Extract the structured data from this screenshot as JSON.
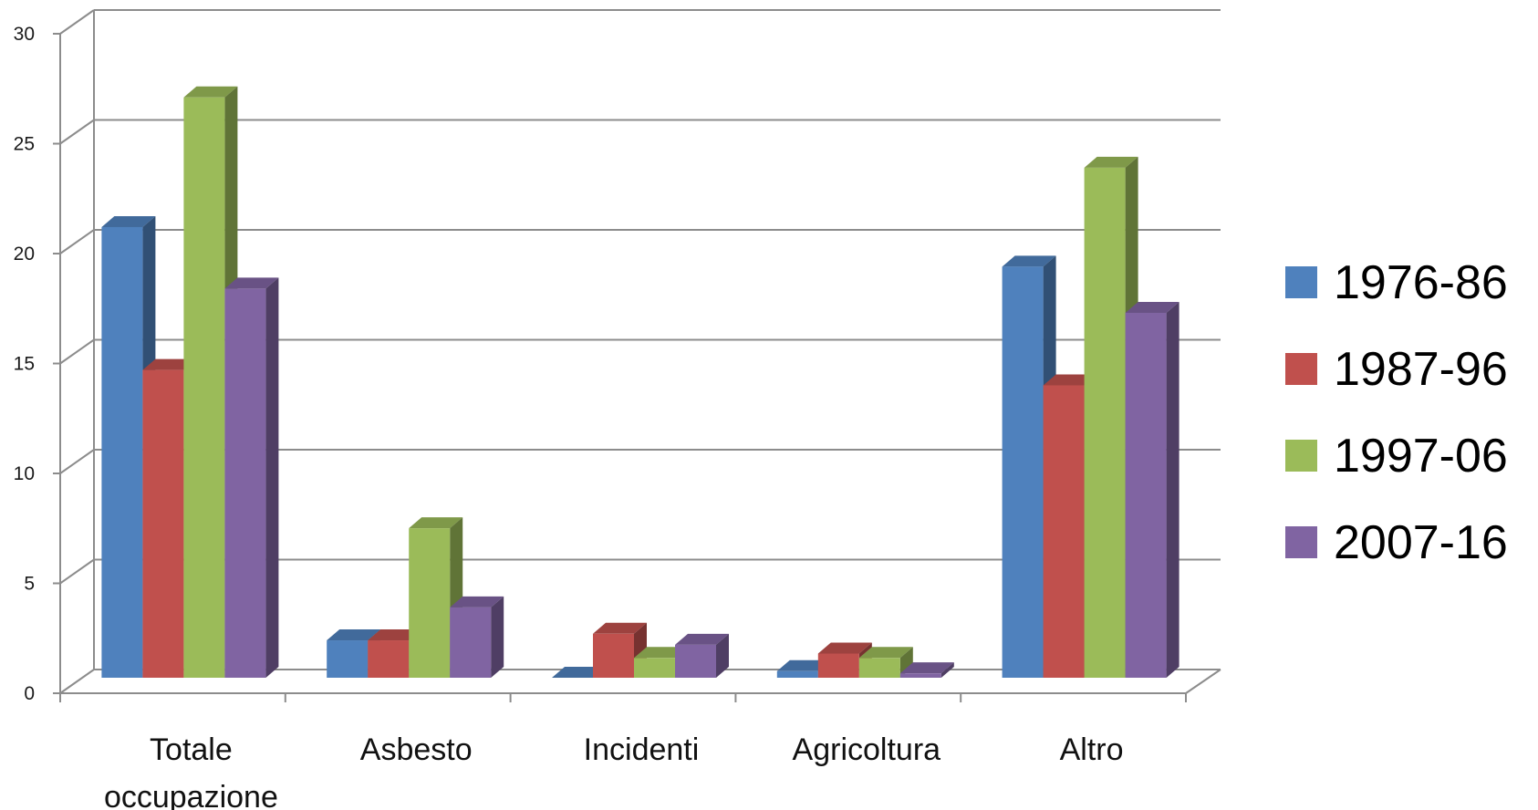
{
  "chart_data": {
    "type": "bar",
    "style": "3d-clustered",
    "categories": [
      [
        "Totale",
        "occupazione"
      ],
      [
        "Asbesto"
      ],
      [
        "Incidenti"
      ],
      [
        "Agricoltura"
      ],
      [
        "Altro"
      ]
    ],
    "series": [
      {
        "name": "1976-86",
        "color": "#4F81BD",
        "values": [
          20.5,
          1.7,
          0,
          0.3,
          18.7
        ]
      },
      {
        "name": "1987-96",
        "color": "#C0504D",
        "values": [
          14.0,
          1.7,
          2.0,
          1.1,
          13.3
        ]
      },
      {
        "name": "1997-06",
        "color": "#9BBB59",
        "values": [
          26.4,
          6.8,
          0.9,
          0.9,
          23.2
        ]
      },
      {
        "name": "2007-16",
        "color": "#8064A2",
        "values": [
          17.7,
          3.2,
          1.5,
          0.2,
          16.6
        ]
      }
    ],
    "ylim": [
      0,
      30
    ],
    "yticks": [
      0,
      5,
      10,
      15,
      20,
      25,
      30
    ],
    "grid": true,
    "legend": "right"
  }
}
